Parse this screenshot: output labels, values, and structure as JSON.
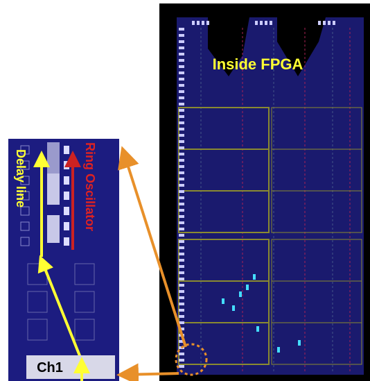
{
  "labels": {
    "inside": "Inside FPGA",
    "delay": "Delay line",
    "ring": "Ring Oscillator",
    "channel": "Ch1"
  }
}
